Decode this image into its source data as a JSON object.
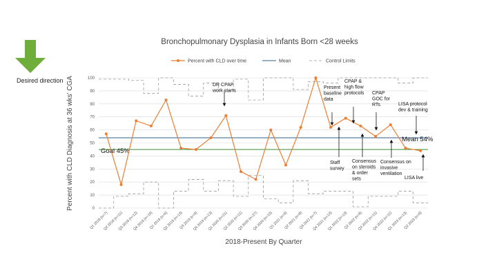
{
  "direction_label": "Desired direction",
  "chart_data": {
    "type": "line",
    "title": "Bronchopulmonary Dysplasia in Infants Born <28 weeks",
    "xlabel": "2018-Present By Quarter",
    "ylabel": "Percent with CLD Diagnosis at 36 wks' CGA",
    "ylim": [
      0,
      100
    ],
    "yticks": [
      0,
      10,
      20,
      30,
      40,
      50,
      60,
      70,
      80,
      90,
      100
    ],
    "categories": [
      "Q1 2018 (n=7)",
      "Q2 2018 (n=11)",
      "Q3 2018 (n=12)",
      "Q4 2018 (n=19)",
      "Q1 2019 (n=6)",
      "Q2 2019 (n=13)",
      "Q3 2019 (n=9)",
      "Q4 2019 (n=13)",
      "Q1 2020 (n=21)",
      "Q2 2020 (n=11)",
      "Q3 2020 (n=27)",
      "Q4 2020 (n=10)",
      "Q1 2021 (n=9)",
      "Q2 2021 (n=8)",
      "Q3 2021 (n=7)",
      "Q4 2021 (n=13)",
      "Q1 2022 (n=13)",
      "Q2 2022 (n=8)",
      "Q3 2022 (n=11)",
      "Q4 2022 (n=11)",
      "Q1 2023 (n=13)",
      "Q2 2023 (n=9)"
    ],
    "series": [
      {
        "name": "Percent with CLD over time",
        "color": "#ED7D31",
        "values": [
          57,
          18,
          67,
          63,
          83,
          46,
          45,
          54,
          71,
          28,
          22,
          60,
          33,
          62,
          100,
          62,
          69,
          63,
          55,
          64,
          46,
          44
        ]
      },
      {
        "name": "Mean",
        "color": "#2E5E8C"
      },
      {
        "name": "Control Limits",
        "color": "#999999"
      }
    ],
    "mean_line": {
      "label": "Mean 54%",
      "value": 54
    },
    "goal_line": {
      "label": "Goal 45%",
      "value": 45,
      "color": "#3A8A2E"
    },
    "control_limits": {
      "upper": [
        99,
        99,
        98,
        88,
        100,
        95,
        86,
        96,
        90,
        99,
        83,
        100,
        100,
        91,
        97,
        96,
        100,
        100,
        100,
        100,
        96,
        100
      ],
      "lower": [
        0,
        9,
        11,
        20,
        0,
        13,
        22,
        13,
        21,
        9,
        25,
        7,
        4,
        21,
        11,
        13,
        13,
        1,
        9,
        9,
        13,
        4
      ]
    },
    "annotations": [
      {
        "label": "DR CPAP work starts",
        "lines": [
          "DR CPAP",
          "work starts"
        ]
      },
      {
        "label": "Present baseline data",
        "lines": [
          "Present",
          "baseline",
          "data"
        ]
      },
      {
        "label": "CPAP & high flow protocols",
        "lines": [
          "CPAP &",
          "high flow",
          "protocols"
        ]
      },
      {
        "label": "CPAP GOC for RTs",
        "lines": [
          "CPAP",
          "GOC for",
          "RTs"
        ]
      },
      {
        "label": "LISA protocol dev & training",
        "lines": [
          "LISA protocol",
          "dev & training"
        ]
      },
      {
        "label": "Staff survey",
        "lines": [
          "Staff",
          "survey"
        ]
      },
      {
        "label": "Consensus on steroids & order sets",
        "lines": [
          "Consensus",
          "on steroids",
          "& order",
          "sets"
        ]
      },
      {
        "label": "Consensus on invasive ventilation",
        "lines": [
          "Consensus on",
          "invasive",
          "ventilation"
        ]
      },
      {
        "label": "LISA live",
        "lines": [
          "LISA live"
        ]
      }
    ]
  }
}
